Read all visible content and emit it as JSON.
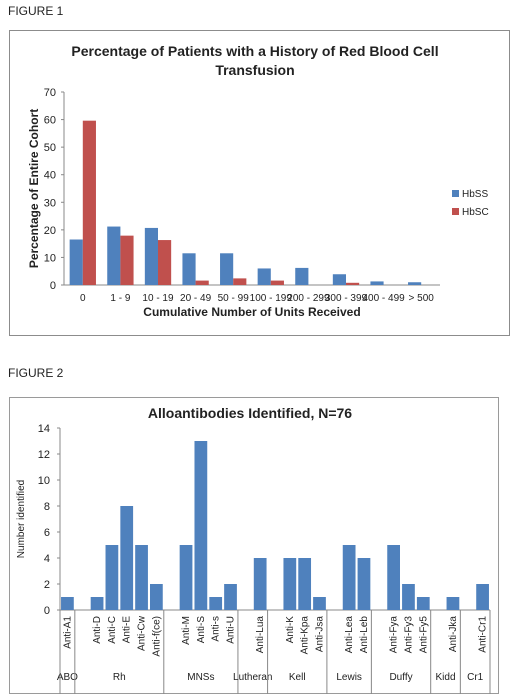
{
  "figure1_label": "FIGURE 1",
  "figure2_label": "FIGURE 2",
  "chart_data": [
    {
      "type": "bar",
      "title": "Percentage of Patients with a History of Red Blood Cell Transfusion",
      "title_lines": [
        "Percentage of Patients with a History of Red Blood Cell",
        "Transfusion"
      ],
      "xlabel": "Cumulative Number of Units Received",
      "ylabel": "Percentage of Entire Cohort",
      "ylim": [
        0,
        70
      ],
      "yticks": [
        0,
        10,
        20,
        30,
        40,
        50,
        60,
        70
      ],
      "categories": [
        "0",
        "1 - 9",
        "10 - 19",
        "20 - 49",
        "50 - 99",
        "100 - 199",
        "200 - 299",
        "300 - 399",
        "400 - 499",
        "> 500"
      ],
      "series": [
        {
          "name": "HbSS",
          "color": "#4f81bd",
          "values": [
            16.5,
            21.2,
            20.7,
            11.5,
            11.5,
            6.0,
            6.2,
            3.9,
            1.3,
            1.0
          ]
        },
        {
          "name": "HbSC",
          "color": "#c0504d",
          "values": [
            59.6,
            17.9,
            16.3,
            1.6,
            2.4,
            1.6,
            0,
            0.8,
            0,
            0
          ]
        }
      ],
      "legend": "right",
      "grid": false
    },
    {
      "type": "bar",
      "title": "Alloantibodies Identified, N=76",
      "ylabel": "Number identified",
      "ylim": [
        0,
        14
      ],
      "yticks": [
        0,
        2,
        4,
        6,
        8,
        10,
        12,
        14
      ],
      "color": "#4f81bd",
      "categories": [
        "Anti-A1",
        "",
        "Anti-D",
        "Anti-C",
        "Anti-E",
        "Anti-Cw",
        "Anti-f(ce)",
        "",
        "Anti-M",
        "Anti-S",
        "Anti-s",
        "Anti-U",
        "",
        "Anti-Lua",
        "",
        "Anti-K",
        "Anti-Kpa",
        "Anti-Jsa",
        "",
        "Anti-Lea",
        "Anti-Leb",
        "",
        "Anti-Fya",
        "Anti-Fy3",
        "Anti-Fy5",
        "",
        "Anti-Jka",
        "",
        "Anti-Cr1"
      ],
      "values": [
        1,
        null,
        1,
        5,
        8,
        5,
        2,
        null,
        5,
        13,
        1,
        2,
        null,
        4,
        null,
        4,
        4,
        1,
        null,
        5,
        4,
        null,
        5,
        2,
        1,
        null,
        1,
        null,
        2
      ],
      "groups": [
        {
          "name": "ABO",
          "start": 0,
          "end": 0
        },
        {
          "name": "Rh",
          "start": 1,
          "end": 6
        },
        {
          "name": "MNSs",
          "start": 7,
          "end": 11
        },
        {
          "name": "Lutheran",
          "start": 12,
          "end": 13
        },
        {
          "name": "Kell",
          "start": 14,
          "end": 17
        },
        {
          "name": "Lewis",
          "start": 18,
          "end": 20
        },
        {
          "name": "Duffy",
          "start": 21,
          "end": 24
        },
        {
          "name": "Kidd",
          "start": 25,
          "end": 26
        },
        {
          "name": "Cr1",
          "start": 27,
          "end": 28
        }
      ],
      "legend": "none",
      "grid": false
    }
  ]
}
